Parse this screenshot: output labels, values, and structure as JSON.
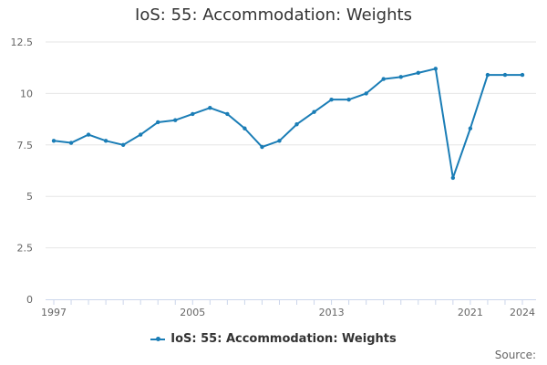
{
  "chart_data": {
    "type": "line",
    "title": "IoS: 55: Accommodation: Weights",
    "x": [
      1997,
      1998,
      1999,
      2000,
      2001,
      2002,
      2003,
      2004,
      2005,
      2006,
      2007,
      2008,
      2009,
      2010,
      2011,
      2012,
      2013,
      2014,
      2015,
      2016,
      2017,
      2018,
      2019,
      2020,
      2021,
      2022,
      2023,
      2024
    ],
    "series": [
      {
        "name": "IoS: 55: Accommodation: Weights",
        "values": [
          7.7,
          7.6,
          8.0,
          7.7,
          7.5,
          8.0,
          8.6,
          8.7,
          9.0,
          9.3,
          9.0,
          8.3,
          7.4,
          7.7,
          8.5,
          9.1,
          9.7,
          9.7,
          10.0,
          10.7,
          10.8,
          11.0,
          11.2,
          5.9,
          8.3,
          10.9,
          10.9,
          10.9
        ]
      }
    ],
    "x_tick_labels": [
      "1997",
      "2005",
      "2013",
      "2021",
      "2024"
    ],
    "y_tick_labels": [
      "0",
      "2.5",
      "5",
      "7.5",
      "10",
      "12.5"
    ],
    "ylim": [
      0,
      12.5
    ],
    "xlim": [
      1997,
      2024
    ],
    "grid": true,
    "legend_position": "bottom",
    "line_color": "#1a7db6",
    "credits": "Source:"
  }
}
